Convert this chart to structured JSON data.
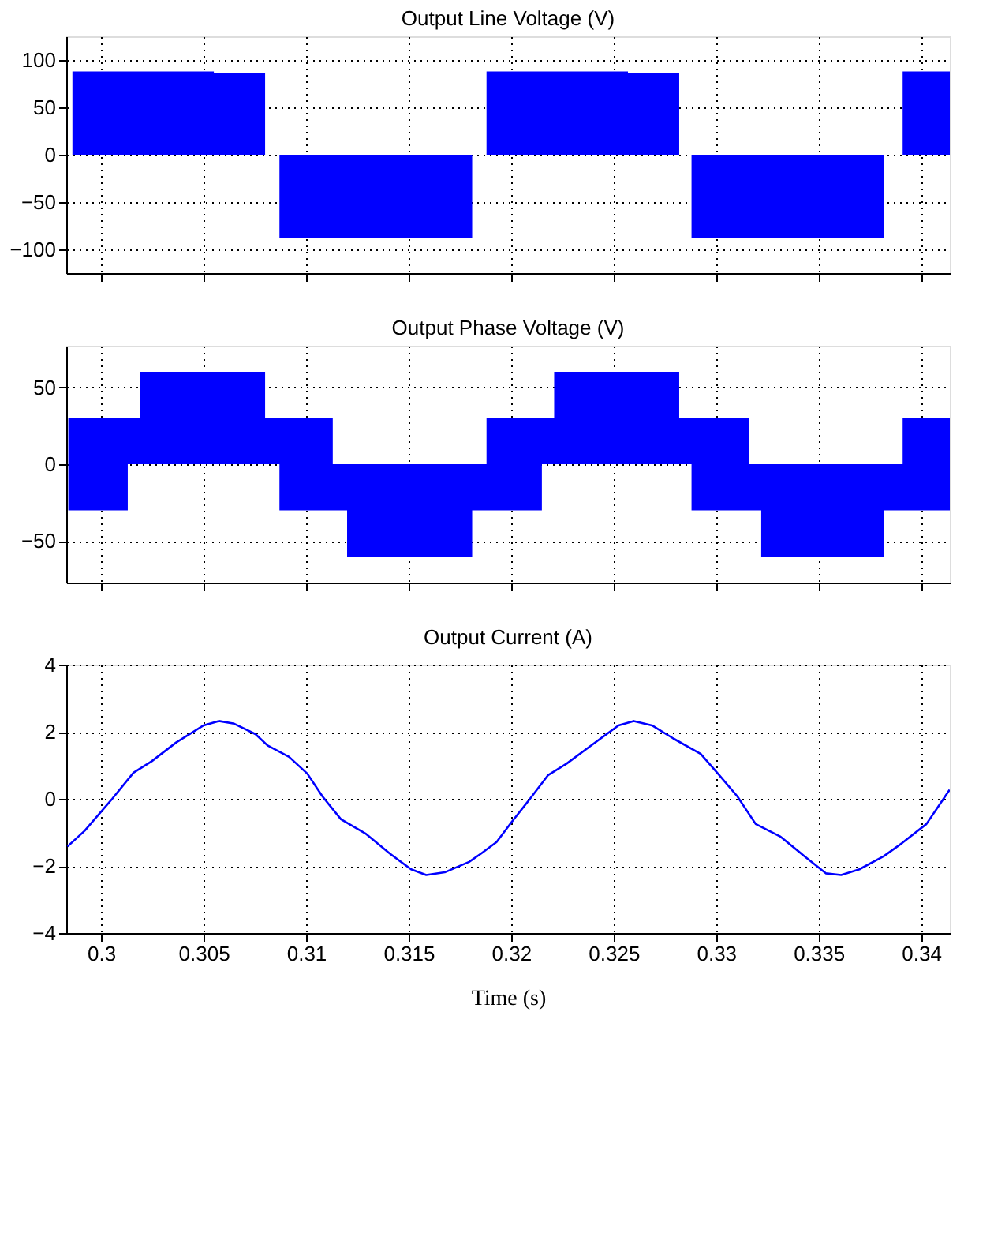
{
  "chart_data": [
    {
      "type": "area",
      "title": "Output Line Voltage (V)",
      "xlim": [
        0.2983,
        0.3414
      ],
      "xticks": [
        0.3,
        0.305,
        0.31,
        0.315,
        0.32,
        0.325,
        0.33,
        0.335,
        0.34
      ],
      "ylim": [
        -125,
        125
      ],
      "yticks": [
        -100,
        -50,
        0,
        50,
        100
      ],
      "grid": true,
      "tick_labels": "y",
      "series": [
        {
          "color": "#0000ff",
          "x": [
            0.2984,
            0.2986,
            0.2986,
            0.3055,
            0.3055,
            0.308,
            0.308,
            0.3087,
            0.3087,
            0.3181,
            0.3181,
            0.3188,
            0.3188,
            0.3257,
            0.3257,
            0.3282,
            0.3282,
            0.3288,
            0.3288,
            0.3382,
            0.3382,
            0.3391,
            0.3391,
            0.3414
          ],
          "values": [
            0,
            0,
            88,
            88,
            86,
            86,
            0,
            0,
            -88,
            -88,
            0,
            0,
            88,
            88,
            86,
            86,
            0,
            0,
            -88,
            -88,
            0,
            0,
            88,
            88
          ]
        }
      ]
    },
    {
      "type": "area",
      "title": "Output Phase Voltage (V)",
      "xlim": [
        0.2983,
        0.3414
      ],
      "xticks": [
        0.3,
        0.305,
        0.31,
        0.315,
        0.32,
        0.325,
        0.33,
        0.335,
        0.34
      ],
      "ylim": [
        -77,
        77
      ],
      "yticks": [
        -50,
        0,
        50
      ],
      "grid": true,
      "tick_labels": "y",
      "series": [
        {
          "color": "#0000ff",
          "x": [
            0.2984,
            0.3019,
            0.3019,
            0.308,
            0.308,
            0.3113,
            0.3113,
            0.3188,
            0.3188,
            0.3221,
            0.3221,
            0.3282,
            0.3282,
            0.3316,
            0.3316,
            0.3391,
            0.3391,
            0.3414
          ],
          "values": [
            30,
            30,
            60,
            60,
            30,
            30,
            0,
            0,
            30,
            30,
            60,
            60,
            30,
            30,
            0,
            0,
            30,
            30
          ]
        },
        {
          "color": "#0000ff",
          "x": [
            0.2984,
            0.3013,
            0.3013,
            0.3087,
            0.3087,
            0.312,
            0.312,
            0.3181,
            0.3181,
            0.3215,
            0.3215,
            0.3288,
            0.3288,
            0.3322,
            0.3322,
            0.3382,
            0.3382,
            0.3414
          ],
          "values": [
            -30,
            -30,
            0,
            0,
            -30,
            -30,
            -60,
            -60,
            -30,
            -30,
            0,
            0,
            -30,
            -30,
            -60,
            -60,
            -30,
            -30
          ]
        }
      ]
    },
    {
      "type": "line",
      "title": "Output Current (A)",
      "xlabel": "Time (s)",
      "xlim": [
        0.2983,
        0.3414
      ],
      "xticks": [
        0.3,
        0.305,
        0.31,
        0.315,
        0.32,
        0.325,
        0.33,
        0.335,
        0.34
      ],
      "ylim": [
        -4,
        4
      ],
      "yticks": [
        -4,
        -2,
        0,
        2,
        4
      ],
      "grid": true,
      "series": [
        {
          "color": "#0000ff",
          "x": [
            0.29836,
            0.2992,
            0.30054,
            0.30158,
            0.30247,
            0.30366,
            0.305,
            0.30574,
            0.30649,
            0.30753,
            0.30812,
            0.30917,
            0.31006,
            0.3108,
            0.3117,
            0.31289,
            0.31408,
            0.31512,
            0.31586,
            0.31676,
            0.31795,
            0.31854,
            0.31929,
            0.32003,
            0.32092,
            0.32181,
            0.32271,
            0.3239,
            0.32524,
            0.32598,
            0.32687,
            0.32791,
            0.32925,
            0.33015,
            0.33104,
            0.33193,
            0.33312,
            0.33431,
            0.33535,
            0.3361,
            0.33699,
            0.33818,
            0.33907,
            0.34026,
            0.34139
          ],
          "values": [
            -1.42,
            -0.95,
            0,
            0.78,
            1.12,
            1.68,
            2.19,
            2.32,
            2.24,
            1.93,
            1.59,
            1.25,
            0.75,
            0.07,
            -0.61,
            -1.03,
            -1.63,
            -2.1,
            -2.27,
            -2.19,
            -1.88,
            -1.63,
            -1.29,
            -0.69,
            0,
            0.71,
            1.05,
            1.59,
            2.19,
            2.32,
            2.19,
            1.8,
            1.34,
            0.71,
            0.07,
            -0.75,
            -1.12,
            -1.71,
            -2.22,
            -2.27,
            -2.1,
            -1.71,
            -1.32,
            -0.75,
            0.27
          ]
        }
      ]
    }
  ]
}
